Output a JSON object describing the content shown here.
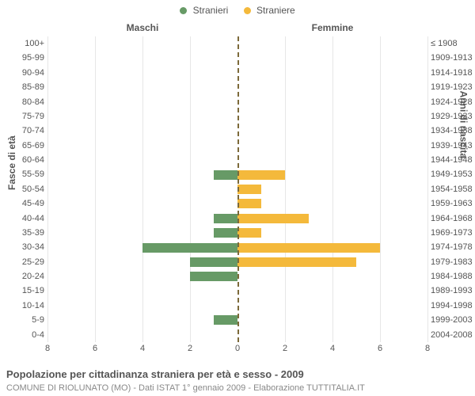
{
  "chart": {
    "type": "population-pyramid",
    "legend": [
      {
        "label": "Stranieri",
        "color": "#679a66"
      },
      {
        "label": "Straniere",
        "color": "#f4b93b"
      }
    ],
    "panel_title_left": "Maschi",
    "panel_title_right": "Femmine",
    "y_axis_left_label": "Fasce di età",
    "y_axis_right_label": "Anni di nascita",
    "x_max": 8,
    "x_ticks": [
      8,
      6,
      4,
      2,
      0,
      2,
      4,
      6,
      8
    ],
    "bar_color_m": "#679a66",
    "bar_color_f": "#f4b93b",
    "background_color": "#ffffff",
    "grid_color": "#e6e6e6",
    "center_line_color": "#7c6a3a",
    "label_fontsize": 11,
    "title_fontsize": 13,
    "rows": [
      {
        "age": "100+",
        "year": "≤ 1908",
        "m": 0,
        "f": 0
      },
      {
        "age": "95-99",
        "year": "1909-1913",
        "m": 0,
        "f": 0
      },
      {
        "age": "90-94",
        "year": "1914-1918",
        "m": 0,
        "f": 0
      },
      {
        "age": "85-89",
        "year": "1919-1923",
        "m": 0,
        "f": 0
      },
      {
        "age": "80-84",
        "year": "1924-1928",
        "m": 0,
        "f": 0
      },
      {
        "age": "75-79",
        "year": "1929-1933",
        "m": 0,
        "f": 0
      },
      {
        "age": "70-74",
        "year": "1934-1938",
        "m": 0,
        "f": 0
      },
      {
        "age": "65-69",
        "year": "1939-1943",
        "m": 0,
        "f": 0
      },
      {
        "age": "60-64",
        "year": "1944-1948",
        "m": 0,
        "f": 0
      },
      {
        "age": "55-59",
        "year": "1949-1953",
        "m": 1,
        "f": 2
      },
      {
        "age": "50-54",
        "year": "1954-1958",
        "m": 0,
        "f": 1
      },
      {
        "age": "45-49",
        "year": "1959-1963",
        "m": 0,
        "f": 1
      },
      {
        "age": "40-44",
        "year": "1964-1968",
        "m": 1,
        "f": 3
      },
      {
        "age": "35-39",
        "year": "1969-1973",
        "m": 1,
        "f": 1
      },
      {
        "age": "30-34",
        "year": "1974-1978",
        "m": 4,
        "f": 6
      },
      {
        "age": "25-29",
        "year": "1979-1983",
        "m": 2,
        "f": 5
      },
      {
        "age": "20-24",
        "year": "1984-1988",
        "m": 2,
        "f": 0
      },
      {
        "age": "15-19",
        "year": "1989-1993",
        "m": 0,
        "f": 0
      },
      {
        "age": "10-14",
        "year": "1994-1998",
        "m": 0,
        "f": 0
      },
      {
        "age": "5-9",
        "year": "1999-2003",
        "m": 1,
        "f": 0
      },
      {
        "age": "0-4",
        "year": "2004-2008",
        "m": 0,
        "f": 0
      }
    ]
  },
  "footer": {
    "title": "Popolazione per cittadinanza straniera per età e sesso - 2009",
    "subtitle": "COMUNE DI RIOLUNATO (MO) - Dati ISTAT 1° gennaio 2009 - Elaborazione TUTTITALIA.IT"
  }
}
